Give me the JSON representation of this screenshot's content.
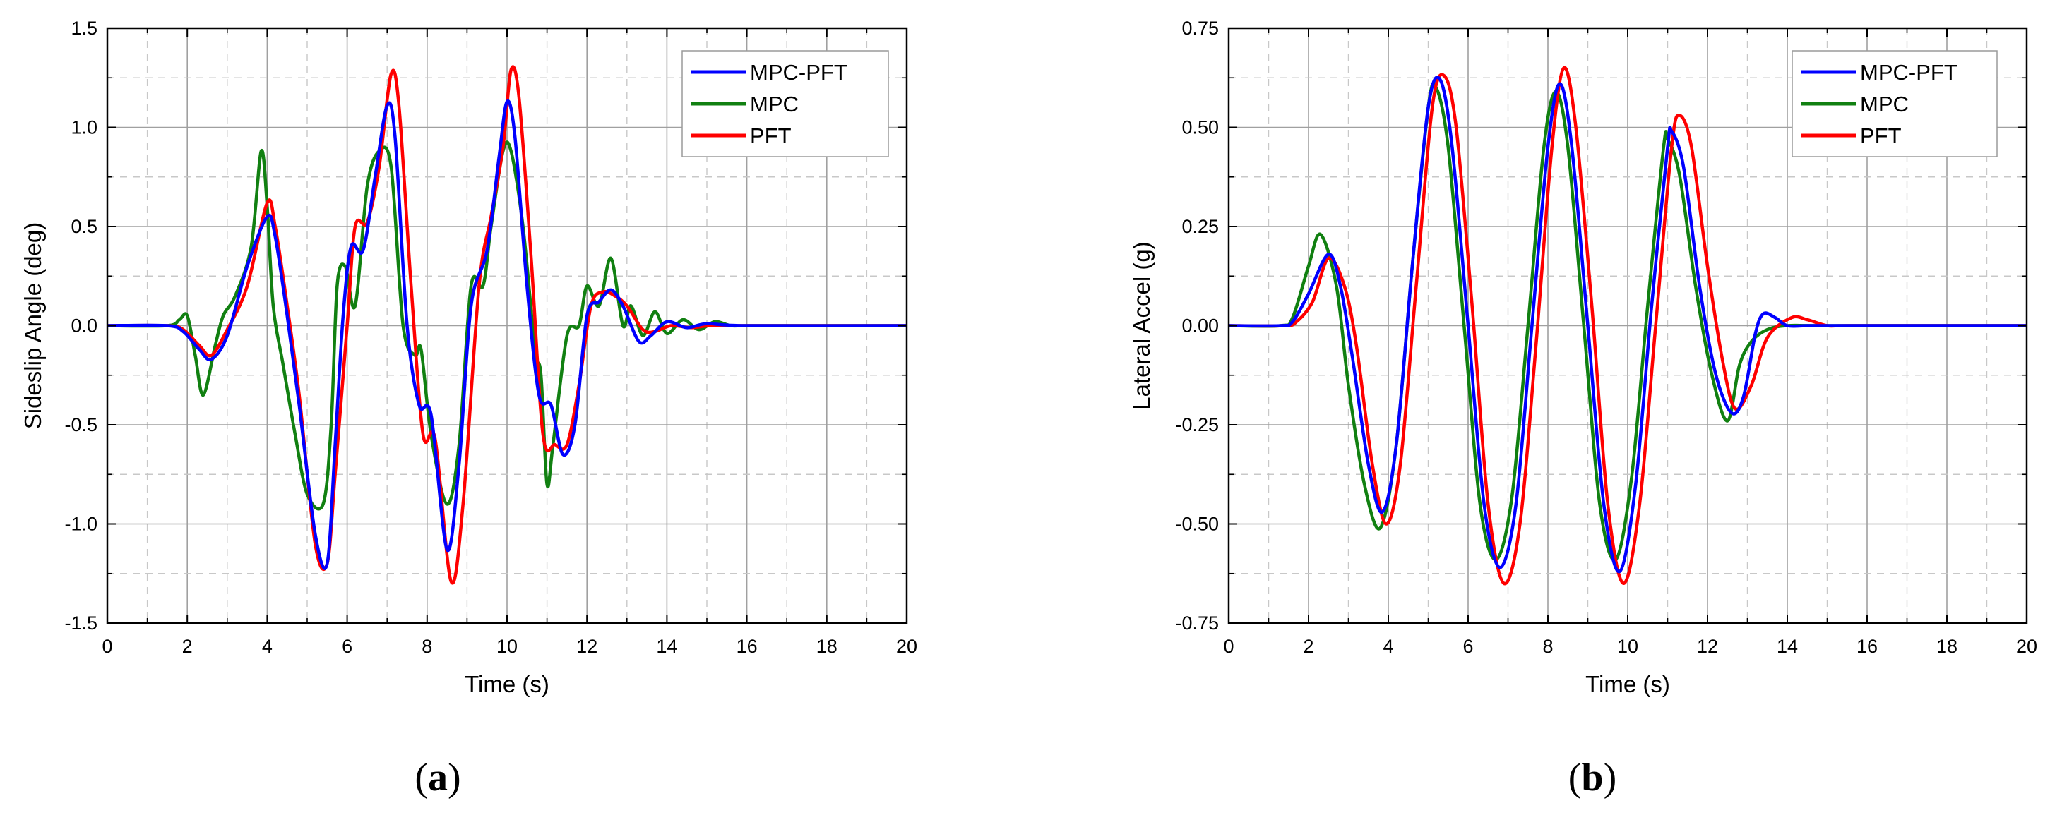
{
  "colors": {
    "MPC-PFT": "#0000ff",
    "MPC": "#118011",
    "PFT": "#ff0000",
    "grid": "#a0a0a0"
  },
  "chart_data": [
    {
      "type": "line",
      "panel": "a",
      "xlabel": "Time (s)",
      "ylabel": "Sideslip Angle (deg)",
      "xlim": [
        0,
        20
      ],
      "ylim": [
        -1.5,
        1.5
      ],
      "xticks": [
        "0",
        "2",
        "4",
        "6",
        "8",
        "10",
        "12",
        "14",
        "16",
        "18",
        "20"
      ],
      "yticks": [
        "-1.5",
        "-1.0",
        "-0.5",
        "0.0",
        "0.5",
        "1.0",
        "1.5"
      ],
      "grid": true,
      "legend_position": "top-right",
      "series": [
        {
          "name": "MPC-PFT",
          "x": [
            0,
            1.5,
            1.9,
            2.3,
            2.6,
            3,
            3.5,
            4,
            4.2,
            4.5,
            4.8,
            5.2,
            5.5,
            5.7,
            5.9,
            6.1,
            6.4,
            6.7,
            7,
            7.2,
            7.5,
            7.8,
            8.1,
            8.5,
            8.8,
            9.1,
            9.5,
            9.8,
            10,
            10.2,
            10.5,
            10.8,
            11.1,
            11.4,
            11.7,
            12,
            12.3,
            12.6,
            12.9,
            13.3,
            13.6,
            14,
            14.5,
            15,
            16,
            20
          ],
          "y": [
            0,
            0,
            -0.03,
            -0.12,
            -0.17,
            -0.05,
            0.3,
            0.55,
            0.45,
            0.05,
            -0.4,
            -1.05,
            -1.2,
            -0.6,
            0.05,
            0.4,
            0.38,
            0.75,
            1.11,
            0.95,
            0.0,
            -0.4,
            -0.45,
            -1.13,
            -0.7,
            0.1,
            0.38,
            0.85,
            1.13,
            0.95,
            0.2,
            -0.35,
            -0.4,
            -0.65,
            -0.5,
            0.05,
            0.12,
            0.18,
            0.1,
            -0.08,
            -0.05,
            0.02,
            -0.01,
            0.01,
            0,
            0
          ]
        },
        {
          "name": "MPC",
          "x": [
            0,
            1.5,
            1.8,
            2.0,
            2.2,
            2.4,
            2.7,
            2.9,
            3.2,
            3.6,
            3.85,
            4.0,
            4.15,
            4.4,
            4.7,
            5.0,
            5.4,
            5.6,
            5.75,
            5.95,
            6.2,
            6.5,
            6.8,
            7.1,
            7.4,
            7.7,
            7.85,
            8.1,
            8.5,
            8.8,
            9.1,
            9.4,
            9.6,
            9.9,
            10.1,
            10.4,
            10.7,
            10.85,
            11.0,
            11.15,
            11.5,
            11.8,
            12.0,
            12.3,
            12.6,
            12.9,
            13.1,
            13.4,
            13.7,
            14.0,
            14.4,
            14.8,
            15.2,
            15.6,
            16,
            20
          ],
          "y": [
            0,
            0,
            0.03,
            0.05,
            -0.15,
            -0.35,
            -0.1,
            0.05,
            0.15,
            0.4,
            0.88,
            0.6,
            0.1,
            -0.2,
            -0.55,
            -0.85,
            -0.9,
            -0.5,
            0.2,
            0.3,
            0.1,
            0.7,
            0.88,
            0.8,
            0.0,
            -0.15,
            -0.12,
            -0.55,
            -0.9,
            -0.6,
            0.2,
            0.2,
            0.5,
            0.88,
            0.88,
            0.5,
            -0.12,
            -0.25,
            -0.8,
            -0.6,
            -0.05,
            0.0,
            0.2,
            0.1,
            0.34,
            0.0,
            0.1,
            -0.05,
            0.07,
            -0.04,
            0.03,
            -0.02,
            0.02,
            0,
            0,
            0
          ]
        },
        {
          "name": "PFT",
          "x": [
            0,
            1.5,
            1.9,
            2.3,
            2.6,
            3,
            3.5,
            4,
            4.2,
            4.5,
            4.8,
            5.2,
            5.5,
            5.7,
            6.0,
            6.2,
            6.5,
            6.8,
            7.1,
            7.3,
            7.6,
            7.9,
            8.2,
            8.6,
            8.9,
            9.3,
            9.6,
            9.9,
            10.1,
            10.3,
            10.6,
            10.9,
            11.2,
            11.5,
            11.8,
            12.1,
            12.4,
            12.7,
            13.0,
            13.4,
            13.7,
            14.1,
            14.6,
            15.1,
            16,
            20
          ],
          "y": [
            0,
            0,
            -0.02,
            -0.1,
            -0.15,
            -0.02,
            0.2,
            0.62,
            0.5,
            0.1,
            -0.35,
            -1.1,
            -1.2,
            -0.75,
            0.0,
            0.5,
            0.52,
            0.8,
            1.27,
            1.1,
            0.2,
            -0.55,
            -0.57,
            -1.29,
            -0.9,
            0.2,
            0.55,
            0.9,
            1.29,
            1.15,
            0.35,
            -0.55,
            -0.6,
            -0.6,
            -0.3,
            0.1,
            0.17,
            0.15,
            0.1,
            -0.02,
            -0.03,
            0.0,
            -0.01,
            0.0,
            0,
            0
          ]
        }
      ]
    },
    {
      "type": "line",
      "panel": "b",
      "xlabel": "Time (s)",
      "ylabel": "Lateral Accel (g)",
      "xlim": [
        0,
        20
      ],
      "ylim": [
        -0.75,
        0.75
      ],
      "xticks": [
        "0",
        "2",
        "4",
        "6",
        "8",
        "10",
        "12",
        "14",
        "16",
        "18",
        "20"
      ],
      "yticks": [
        "-0.75",
        "-0.50",
        "-0.25",
        "0.00",
        "0.25",
        "0.50",
        "0.75"
      ],
      "grid": true,
      "legend_position": "top-right",
      "series": [
        {
          "name": "MPC-PFT",
          "x": [
            0,
            1.3,
            1.6,
            2.0,
            2.5,
            2.8,
            3.1,
            3.5,
            3.85,
            4.2,
            4.6,
            5.0,
            5.3,
            5.6,
            6.0,
            6.4,
            6.8,
            7.2,
            7.6,
            8.0,
            8.3,
            8.6,
            9.0,
            9.4,
            9.8,
            10.2,
            10.6,
            11.0,
            11.1,
            11.4,
            11.8,
            12.2,
            12.6,
            12.9,
            13.2,
            13.4,
            13.7,
            14.0,
            14.5,
            15,
            20
          ],
          "y": [
            0,
            0,
            0.01,
            0.08,
            0.18,
            0.1,
            -0.08,
            -0.35,
            -0.47,
            -0.3,
            0.15,
            0.55,
            0.62,
            0.45,
            0.0,
            -0.45,
            -0.61,
            -0.45,
            0.0,
            0.45,
            0.61,
            0.45,
            0.0,
            -0.45,
            -0.62,
            -0.4,
            0.05,
            0.45,
            0.49,
            0.4,
            0.1,
            -0.12,
            -0.22,
            -0.18,
            -0.02,
            0.03,
            0.02,
            0.0,
            0.0,
            0,
            0
          ]
        },
        {
          "name": "MPC",
          "x": [
            0,
            1.3,
            1.6,
            2.0,
            2.3,
            2.7,
            3.0,
            3.4,
            3.8,
            4.2,
            4.6,
            5.0,
            5.2,
            5.5,
            5.9,
            6.3,
            6.7,
            7.1,
            7.5,
            7.9,
            8.2,
            8.5,
            8.9,
            9.3,
            9.7,
            10.1,
            10.5,
            10.9,
            11.0,
            11.3,
            11.7,
            12.1,
            12.5,
            12.8,
            13.1,
            13.5,
            14,
            15,
            20
          ],
          "y": [
            0,
            0,
            0.02,
            0.15,
            0.23,
            0.1,
            -0.15,
            -0.4,
            -0.51,
            -0.3,
            0.15,
            0.55,
            0.6,
            0.45,
            0.0,
            -0.45,
            -0.59,
            -0.43,
            0.0,
            0.45,
            0.59,
            0.45,
            0.0,
            -0.45,
            -0.59,
            -0.38,
            0.05,
            0.45,
            0.47,
            0.38,
            0.1,
            -0.12,
            -0.24,
            -0.1,
            -0.04,
            -0.01,
            0,
            0,
            0
          ]
        },
        {
          "name": "PFT",
          "x": [
            0,
            1.4,
            1.7,
            2.1,
            2.5,
            2.9,
            3.2,
            3.6,
            3.95,
            4.3,
            4.7,
            5.1,
            5.4,
            5.7,
            6.1,
            6.5,
            6.9,
            7.3,
            7.7,
            8.1,
            8.4,
            8.7,
            9.1,
            9.5,
            9.9,
            10.3,
            10.7,
            11.1,
            11.3,
            11.6,
            12.0,
            12.4,
            12.7,
            13.1,
            13.5,
            14.1,
            14.5,
            15.0,
            15.5,
            20
          ],
          "y": [
            0,
            0,
            0.01,
            0.06,
            0.17,
            0.1,
            -0.05,
            -0.35,
            -0.5,
            -0.35,
            0.1,
            0.55,
            0.63,
            0.5,
            0.05,
            -0.45,
            -0.65,
            -0.5,
            -0.05,
            0.45,
            0.65,
            0.5,
            0.05,
            -0.45,
            -0.65,
            -0.45,
            0.0,
            0.45,
            0.53,
            0.45,
            0.15,
            -0.1,
            -0.21,
            -0.15,
            -0.03,
            0.02,
            0.015,
            0.0,
            0,
            0
          ]
        }
      ]
    }
  ],
  "captions": {
    "a": "a",
    "b": "b"
  }
}
